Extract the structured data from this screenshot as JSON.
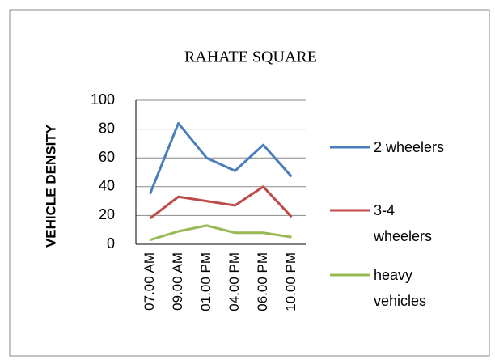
{
  "chart_data": {
    "type": "line",
    "title": "RAHATE SQUARE",
    "y_label": "VEHICLE DENSITY",
    "categories": [
      "07.00 AM",
      "09.00 AM",
      "01.00 PM",
      "04.00 PM",
      "06.00 PM",
      "10.00 PM"
    ],
    "series": [
      {
        "name": "2 wheelers",
        "color": "#4a7ebb",
        "values": [
          35,
          84,
          60,
          51,
          69,
          47
        ]
      },
      {
        "name": "3-4 wheelers",
        "color": "#be4b48",
        "values": [
          18,
          33,
          30,
          27,
          40,
          19
        ]
      },
      {
        "name": "heavy vehicles",
        "color": "#98b954",
        "values": [
          3,
          9,
          13,
          8,
          8,
          5
        ]
      }
    ],
    "ylim": [
      0,
      100
    ],
    "yticks": [
      0,
      20,
      40,
      60,
      80,
      100
    ],
    "grid": true,
    "legend": "right"
  }
}
